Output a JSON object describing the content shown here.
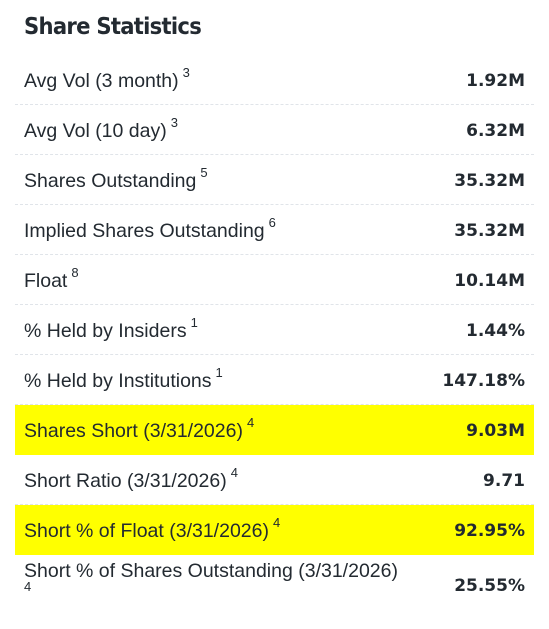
{
  "section": {
    "title": "Share Statistics"
  },
  "rows": [
    {
      "label": "Avg Vol (3 month)",
      "note": "3",
      "value": "1.92M",
      "highlighted": false
    },
    {
      "label": "Avg Vol (10 day)",
      "note": "3",
      "value": "6.32M",
      "highlighted": false
    },
    {
      "label": "Shares Outstanding",
      "note": "5",
      "value": "35.32M",
      "highlighted": false
    },
    {
      "label": "Implied Shares Outstanding",
      "note": "6",
      "value": "35.32M",
      "highlighted": false
    },
    {
      "label": "Float",
      "note": "8",
      "value": "10.14M",
      "highlighted": false
    },
    {
      "label": "% Held by Insiders",
      "note": "1",
      "value": "1.44%",
      "highlighted": false
    },
    {
      "label": "% Held by Institutions",
      "note": "1",
      "value": "147.18%",
      "highlighted": false
    },
    {
      "label": "Shares Short (3/31/2026)",
      "note": "4",
      "value": "9.03M",
      "highlighted": true
    },
    {
      "label": "Short Ratio (3/31/2026)",
      "note": "4",
      "value": "9.71",
      "highlighted": false
    },
    {
      "label": "Short % of Float (3/31/2026)",
      "note": "4",
      "value": "92.95%",
      "highlighted": true
    },
    {
      "label": "Short % of Shares Outstanding (3/31/2026)",
      "note": "4",
      "value": "25.55%",
      "highlighted": false
    }
  ],
  "colors": {
    "highlight": "#ffff00",
    "text": "#232a31",
    "divider": "#e0e4e9"
  }
}
